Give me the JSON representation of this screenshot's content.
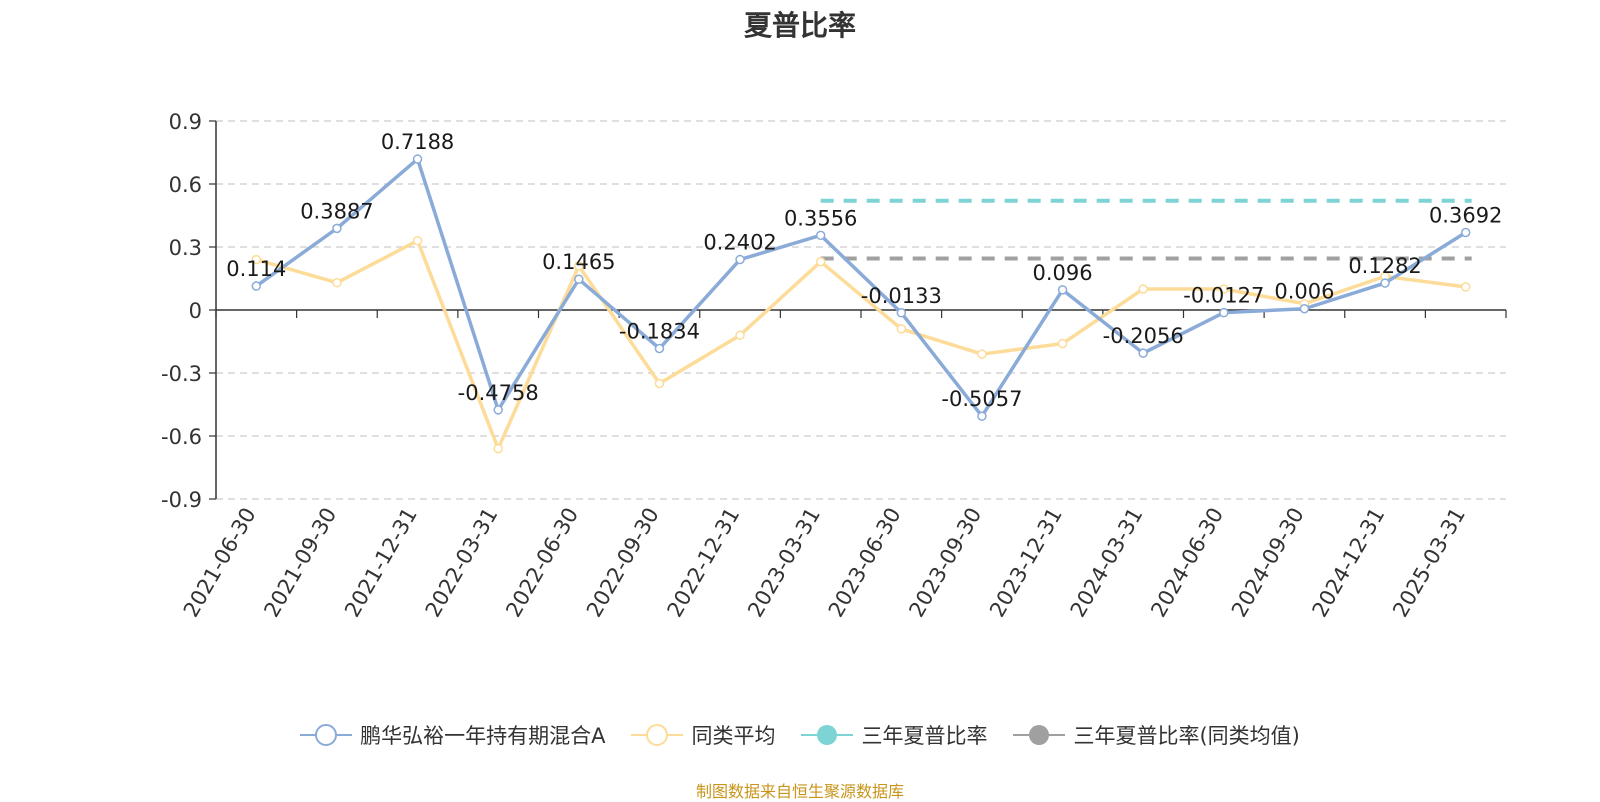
{
  "chart_data": {
    "type": "line",
    "title": "夏普比率",
    "categories": [
      "2021-06-30",
      "2021-09-30",
      "2021-12-31",
      "2022-03-31",
      "2022-06-30",
      "2022-09-30",
      "2022-12-31",
      "2023-03-31",
      "2023-06-30",
      "2023-09-30",
      "2023-12-31",
      "2024-03-31",
      "2024-06-30",
      "2024-09-30",
      "2024-12-31",
      "2025-03-31"
    ],
    "yticks": [
      0.9,
      0.6,
      0.3,
      0,
      -0.3,
      -0.6,
      -0.9
    ],
    "ylim": [
      -0.9,
      0.9
    ],
    "grid": true,
    "legend_position": "bottom",
    "series": [
      {
        "name": "鹏华弘裕一年持有期混合A",
        "color": "#8aaad8",
        "values": [
          0.114,
          0.3887,
          0.7188,
          -0.4758,
          0.1465,
          -0.1834,
          0.2402,
          0.3556,
          -0.0133,
          -0.5057,
          0.096,
          -0.2056,
          -0.0127,
          0.006,
          0.1282,
          0.3692
        ],
        "labels": [
          "0.114",
          "0.3887",
          "0.7188",
          "-0.4758",
          "0.1465",
          "-0.1834",
          "0.2402",
          "0.3556",
          "-0.0133",
          "-0.5057",
          "0.096",
          "-0.2056",
          "-0.0127",
          "0.006",
          "0.1282",
          "0.3692"
        ]
      },
      {
        "name": "同类平均",
        "color": "#fcdc98",
        "values": [
          0.24,
          0.13,
          0.33,
          -0.66,
          0.21,
          -0.35,
          -0.12,
          0.23,
          -0.09,
          -0.21,
          -0.16,
          0.1,
          0.1,
          0.03,
          0.16,
          0.11
        ]
      }
    ],
    "reference_lines": [
      {
        "name": "三年夏普比率",
        "color": "#7ed3d4",
        "value": 0.52,
        "start_category": "2023-03-31"
      },
      {
        "name": "三年夏普比率(同类均值)",
        "color": "#a0a0a0",
        "value": 0.245,
        "start_category": "2023-03-31"
      }
    ]
  },
  "source_note": "制图数据来自恒生聚源数据库"
}
